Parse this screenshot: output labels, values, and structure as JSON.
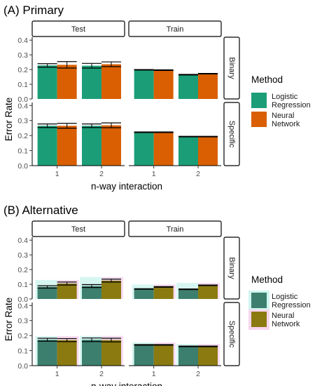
{
  "colors": {
    "logistic": "#1b9e77",
    "neural": "#d95f02",
    "alt_logistic": "#3d7f6f",
    "alt_neural": "#8a7a10",
    "alt_glow_logistic": "#cff5ef",
    "alt_glow_neural": "#f7d6ef"
  },
  "chart_data": [
    {
      "id": "A",
      "title": "(A) Primary",
      "type": "bar",
      "facet_cols": [
        "Test",
        "Train"
      ],
      "facet_rows": [
        "Binary",
        "Specific"
      ],
      "categories": [
        "1",
        "2"
      ],
      "xlabel": "n-way interaction",
      "ylabel": "Error Rate",
      "ylim": [
        0,
        0.42
      ],
      "y_ticks": [
        "0.0",
        "0.1",
        "0.2",
        "0.3",
        "0.4"
      ],
      "legend": {
        "title": "Method",
        "position": "right",
        "items": [
          "Logistic\nRegression",
          "Neural\nNetwork"
        ]
      },
      "panels": [
        {
          "row": "Binary",
          "col": "Test",
          "series": [
            {
              "name": "Logistic Regression",
              "values": [
                0.228,
                0.226
              ],
              "err": [
                0.012,
                0.016
              ]
            },
            {
              "name": "Neural Network",
              "values": [
                0.232,
                0.236
              ],
              "err": [
                0.022,
                0.016
              ]
            }
          ]
        },
        {
          "row": "Binary",
          "col": "Train",
          "series": [
            {
              "name": "Logistic Regression",
              "values": [
                0.198,
                0.165
              ],
              "err": [
                0.002,
                0.002
              ]
            },
            {
              "name": "Neural Network",
              "values": [
                0.196,
                0.172
              ],
              "err": [
                0.002,
                0.002
              ]
            }
          ]
        },
        {
          "row": "Specific",
          "col": "Test",
          "series": [
            {
              "name": "Logistic Regression",
              "values": [
                0.265,
                0.265
              ],
              "err": [
                0.012,
                0.012
              ]
            },
            {
              "name": "Neural Network",
              "values": [
                0.265,
                0.268
              ],
              "err": [
                0.016,
                0.016
              ]
            }
          ]
        },
        {
          "row": "Specific",
          "col": "Train",
          "series": [
            {
              "name": "Logistic Regression",
              "values": [
                0.222,
                0.193
              ],
              "err": [
                0.002,
                0.002
              ]
            },
            {
              "name": "Neural Network",
              "values": [
                0.222,
                0.193
              ],
              "err": [
                0.002,
                0.002
              ]
            }
          ]
        }
      ]
    },
    {
      "id": "B",
      "title": "(B) Alternative",
      "type": "bar",
      "facet_cols": [
        "Test",
        "Train"
      ],
      "facet_rows": [
        "Binary",
        "Specific"
      ],
      "categories": [
        "1",
        "2"
      ],
      "xlabel": "n-way interaction",
      "ylabel": "Error Rate",
      "ylim": [
        0,
        0.42
      ],
      "y_ticks": [
        "0.0",
        "0.1",
        "0.2",
        "0.3",
        "0.4"
      ],
      "legend": {
        "title": "Method",
        "position": "right",
        "items": [
          "Logistic\nRegression",
          "Neural\nNetwork"
        ]
      },
      "panels": [
        {
          "row": "Binary",
          "col": "Test",
          "series": [
            {
              "name": "Logistic Regression",
              "values": [
                0.082,
                0.088
              ],
              "err": [
                0.008,
                0.01
              ]
            },
            {
              "name": "Neural Network",
              "values": [
                0.105,
                0.125
              ],
              "err": [
                0.01,
                0.01
              ]
            }
          ]
        },
        {
          "row": "Binary",
          "col": "Train",
          "series": [
            {
              "name": "Logistic Regression",
              "values": [
                0.068,
                0.066
              ],
              "err": [
                0.002,
                0.002
              ]
            },
            {
              "name": "Neural Network",
              "values": [
                0.082,
                0.093
              ],
              "err": [
                0.002,
                0.002
              ]
            }
          ]
        },
        {
          "row": "Specific",
          "col": "Test",
          "series": [
            {
              "name": "Logistic Regression",
              "values": [
                0.172,
                0.172
              ],
              "err": [
                0.01,
                0.012
              ]
            },
            {
              "name": "Neural Network",
              "values": [
                0.17,
                0.17
              ],
              "err": [
                0.01,
                0.012
              ]
            }
          ]
        },
        {
          "row": "Specific",
          "col": "Train",
          "series": [
            {
              "name": "Logistic Regression",
              "values": [
                0.138,
                0.128
              ],
              "err": [
                0.002,
                0.002
              ]
            },
            {
              "name": "Neural Network",
              "values": [
                0.138,
                0.128
              ],
              "err": [
                0.002,
                0.002
              ]
            }
          ]
        }
      ]
    }
  ]
}
